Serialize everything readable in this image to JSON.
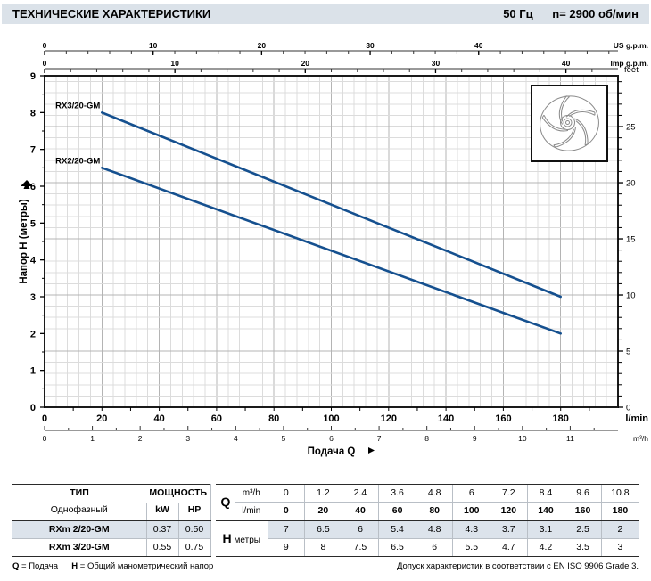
{
  "header": {
    "title": "ТЕХНИЧЕСКИЕ ХАРАКТЕРИСТИКИ",
    "frequency": "50 Гц",
    "speed": "n= 2900  об/мин"
  },
  "chart_data": {
    "type": "line",
    "xlabel": "Подача Q",
    "ylabel": "Напор H (метры)",
    "x_range_lmin": [
      0,
      200
    ],
    "y_range_m": [
      0,
      9
    ],
    "x_axes": {
      "us_gpm": {
        "unit": "US g.p.m.",
        "ticks": [
          0,
          10,
          20,
          30,
          40
        ],
        "lmin_per_unit": 3.785,
        "minor_step": 2
      },
      "imp_gpm": {
        "unit": "Imp g.p.m.",
        "ticks": [
          0,
          10,
          20,
          30,
          40
        ],
        "lmin_per_unit": 4.546,
        "minor_step": 2
      },
      "lmin": {
        "unit": "l/min",
        "ticks": [
          0,
          20,
          40,
          60,
          80,
          100,
          120,
          140,
          160,
          180
        ],
        "minor_step": 10
      },
      "m3h": {
        "unit": "m³/h",
        "ticks": [
          0,
          1,
          2,
          3,
          4,
          5,
          6,
          7,
          8,
          9,
          10,
          11
        ],
        "lmin_per_unit": 16.6667,
        "minor_step": 0.5
      }
    },
    "y_axes": {
      "meters": {
        "ticks": [
          0,
          1,
          2,
          3,
          4,
          5,
          6,
          7,
          8,
          9
        ],
        "minor_step": 0.5
      },
      "feet": {
        "unit": "feet",
        "ticks": [
          0,
          5,
          10,
          15,
          20,
          25
        ],
        "m_per_unit": 0.3048,
        "minor_step": 1
      }
    },
    "grid": {
      "v_step_lmin": 4,
      "v_major_every": 5,
      "h_step_ft": 1,
      "h_major_every": 5
    },
    "series": [
      {
        "name": "RX3/20-GM",
        "points": [
          [
            20,
            8
          ],
          [
            180,
            3
          ]
        ]
      },
      {
        "name": "RX2/20-GM",
        "points": [
          [
            20,
            6.5
          ],
          [
            180,
            2
          ]
        ]
      }
    ],
    "legend_position": "on-curve-start",
    "grid_on": true,
    "colors": {
      "curve": "#15508f",
      "grid_minor": "#dcdcdc",
      "grid_major": "#b4b4b4",
      "frame": "#1a1a1a"
    }
  },
  "table": {
    "type_header": "ТИП",
    "type_sub": "Однофазный",
    "power_header": "МОЩНОСТЬ",
    "kw_header": "kW",
    "hp_header": "HP",
    "q_label": "Q",
    "q_unit1": "m³/h",
    "q_unit2": "l/min",
    "h_label": "H",
    "h_unit": "метры",
    "q_m3h": [
      "0",
      "1.2",
      "2.4",
      "3.6",
      "4.8",
      "6",
      "7.2",
      "8.4",
      "9.6",
      "10.8"
    ],
    "q_lmin": [
      "0",
      "20",
      "40",
      "60",
      "80",
      "100",
      "120",
      "140",
      "160",
      "180"
    ],
    "rows": [
      {
        "type": "RXm 2/20-GM",
        "kw": "0.37",
        "hp": "0.50",
        "h": [
          "7",
          "6.5",
          "6",
          "5.4",
          "4.8",
          "4.3",
          "3.7",
          "3.1",
          "2.5",
          "2"
        ]
      },
      {
        "type": "RXm 3/20-GM",
        "kw": "0.55",
        "hp": "0.75",
        "h": [
          "9",
          "8",
          "7.5",
          "6.5",
          "6",
          "5.5",
          "4.7",
          "4.2",
          "3.5",
          "3"
        ]
      }
    ]
  },
  "footer": {
    "q_term": "Q",
    "q_def": "= Подача",
    "h_term": "H",
    "h_def": "= Общий манометрический напор",
    "tolerance": "Допуск характеристик в соответствии с EN ISO 9906 Grade 3."
  }
}
